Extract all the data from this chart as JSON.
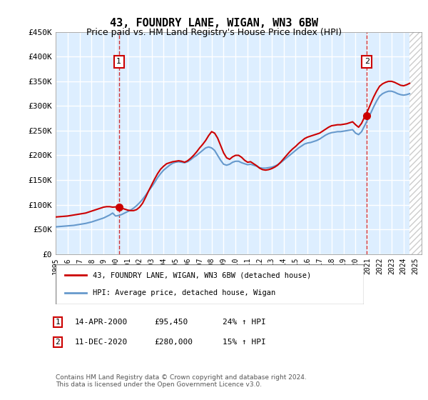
{
  "title": "43, FOUNDRY LANE, WIGAN, WN3 6BW",
  "subtitle": "Price paid vs. HM Land Registry's House Price Index (HPI)",
  "ylabel_ticks": [
    "£0",
    "£50K",
    "£100K",
    "£150K",
    "£200K",
    "£250K",
    "£300K",
    "£350K",
    "£400K",
    "£450K"
  ],
  "ylim": [
    0,
    450000
  ],
  "xlim_start": 1995.0,
  "xlim_end": 2025.5,
  "marker1_x": 2000.28,
  "marker1_y": 95450,
  "marker2_x": 2020.94,
  "marker2_y": 280000,
  "marker1_label": "1",
  "marker2_label": "2",
  "vline1_x": 2000.28,
  "vline2_x": 2020.94,
  "legend_line1": "43, FOUNDRY LANE, WIGAN, WN3 6BW (detached house)",
  "legend_line2": "HPI: Average price, detached house, Wigan",
  "annotation1": "1    14-APR-2000         £95,450         24% ↑ HPI",
  "annotation2": "2    11-DEC-2020         £280,000       15% ↑ HPI",
  "footer": "Contains HM Land Registry data © Crown copyright and database right 2024.\nThis data is licensed under the Open Government Licence v3.0.",
  "line_color_red": "#cc0000",
  "line_color_blue": "#6699cc",
  "background_color": "#ddeeff",
  "hatch_color": "#cccccc",
  "grid_color": "#ffffff",
  "title_fontsize": 11,
  "subtitle_fontsize": 9,
  "tick_fontsize": 8,
  "hpi_data_x": [
    1995.0,
    1995.25,
    1995.5,
    1995.75,
    1996.0,
    1996.25,
    1996.5,
    1996.75,
    1997.0,
    1997.25,
    1997.5,
    1997.75,
    1998.0,
    1998.25,
    1998.5,
    1998.75,
    1999.0,
    1999.25,
    1999.5,
    1999.75,
    2000.0,
    2000.25,
    2000.5,
    2000.75,
    2001.0,
    2001.25,
    2001.5,
    2001.75,
    2002.0,
    2002.25,
    2002.5,
    2002.75,
    2003.0,
    2003.25,
    2003.5,
    2003.75,
    2004.0,
    2004.25,
    2004.5,
    2004.75,
    2005.0,
    2005.25,
    2005.5,
    2005.75,
    2006.0,
    2006.25,
    2006.5,
    2006.75,
    2007.0,
    2007.25,
    2007.5,
    2007.75,
    2008.0,
    2008.25,
    2008.5,
    2008.75,
    2009.0,
    2009.25,
    2009.5,
    2009.75,
    2010.0,
    2010.25,
    2010.5,
    2010.75,
    2011.0,
    2011.25,
    2011.5,
    2011.75,
    2012.0,
    2012.25,
    2012.5,
    2012.75,
    2013.0,
    2013.25,
    2013.5,
    2013.75,
    2014.0,
    2014.25,
    2014.5,
    2014.75,
    2015.0,
    2015.25,
    2015.5,
    2015.75,
    2016.0,
    2016.25,
    2016.5,
    2016.75,
    2017.0,
    2017.25,
    2017.5,
    2017.75,
    2018.0,
    2018.25,
    2018.5,
    2018.75,
    2019.0,
    2019.25,
    2019.5,
    2019.75,
    2020.0,
    2020.25,
    2020.5,
    2020.75,
    2021.0,
    2021.25,
    2021.5,
    2021.75,
    2022.0,
    2022.25,
    2022.5,
    2022.75,
    2023.0,
    2023.25,
    2023.5,
    2023.75,
    2024.0,
    2024.25,
    2024.5
  ],
  "hpi_data_y": [
    55000,
    55500,
    56000,
    56500,
    57000,
    57500,
    58000,
    59000,
    60000,
    61000,
    62000,
    63500,
    65000,
    67000,
    69000,
    71000,
    73000,
    76000,
    79000,
    83000,
    77000,
    78000,
    80000,
    83000,
    86000,
    89000,
    93000,
    98000,
    104000,
    111000,
    119000,
    128000,
    136000,
    145000,
    155000,
    163000,
    170000,
    175000,
    180000,
    184000,
    186000,
    187000,
    186000,
    185000,
    187000,
    191000,
    196000,
    200000,
    205000,
    210000,
    215000,
    217000,
    215000,
    210000,
    200000,
    190000,
    182000,
    180000,
    182000,
    186000,
    188000,
    188000,
    185000,
    183000,
    181000,
    182000,
    180000,
    178000,
    175000,
    174000,
    174000,
    175000,
    176000,
    178000,
    181000,
    185000,
    190000,
    195000,
    200000,
    205000,
    210000,
    215000,
    219000,
    223000,
    225000,
    226000,
    228000,
    230000,
    233000,
    237000,
    241000,
    244000,
    246000,
    247000,
    248000,
    248000,
    249000,
    250000,
    251000,
    252000,
    245000,
    242000,
    248000,
    260000,
    272000,
    285000,
    298000,
    310000,
    320000,
    325000,
    328000,
    330000,
    330000,
    328000,
    325000,
    323000,
    322000,
    323000,
    325000
  ],
  "price_data_x": [
    1995.0,
    1995.25,
    1995.5,
    1995.75,
    1996.0,
    1996.25,
    1996.5,
    1996.75,
    1997.0,
    1997.25,
    1997.5,
    1997.75,
    1998.0,
    1998.25,
    1998.5,
    1998.75,
    1999.0,
    1999.25,
    1999.5,
    1999.75,
    2000.0,
    2000.25,
    2000.5,
    2000.75,
    2001.0,
    2001.25,
    2001.5,
    2001.75,
    2002.0,
    2002.25,
    2002.5,
    2002.75,
    2003.0,
    2003.25,
    2003.5,
    2003.75,
    2004.0,
    2004.25,
    2004.5,
    2004.75,
    2005.0,
    2005.25,
    2005.5,
    2005.75,
    2006.0,
    2006.25,
    2006.5,
    2006.75,
    2007.0,
    2007.25,
    2007.5,
    2007.75,
    2008.0,
    2008.25,
    2008.5,
    2008.75,
    2009.0,
    2009.25,
    2009.5,
    2009.75,
    2010.0,
    2010.25,
    2010.5,
    2010.75,
    2011.0,
    2011.25,
    2011.5,
    2011.75,
    2012.0,
    2012.25,
    2012.5,
    2012.75,
    2013.0,
    2013.25,
    2013.5,
    2013.75,
    2014.0,
    2014.25,
    2014.5,
    2014.75,
    2015.0,
    2015.25,
    2015.5,
    2015.75,
    2016.0,
    2016.25,
    2016.5,
    2016.75,
    2017.0,
    2017.25,
    2017.5,
    2017.75,
    2018.0,
    2018.25,
    2018.5,
    2018.75,
    2019.0,
    2019.25,
    2019.5,
    2019.75,
    2020.0,
    2020.25,
    2020.5,
    2020.75,
    2021.0,
    2021.25,
    2021.5,
    2021.75,
    2022.0,
    2022.25,
    2022.5,
    2022.75,
    2023.0,
    2023.25,
    2023.5,
    2023.75,
    2024.0,
    2024.25,
    2024.5
  ],
  "price_data_y": [
    75000,
    75500,
    76000,
    76500,
    77000,
    78000,
    79000,
    80000,
    81000,
    82000,
    83000,
    85000,
    87000,
    89000,
    91000,
    93000,
    95000,
    96000,
    96000,
    95000,
    95450,
    95000,
    93000,
    91000,
    89000,
    88000,
    88000,
    90000,
    95000,
    103000,
    115000,
    128000,
    140000,
    152000,
    163000,
    172000,
    178000,
    183000,
    185000,
    187000,
    188000,
    189000,
    188000,
    186000,
    189000,
    194000,
    200000,
    207000,
    215000,
    222000,
    230000,
    240000,
    248000,
    245000,
    235000,
    220000,
    205000,
    195000,
    192000,
    197000,
    200000,
    200000,
    196000,
    190000,
    186000,
    187000,
    183000,
    179000,
    174000,
    171000,
    170000,
    171000,
    173000,
    176000,
    180000,
    186000,
    193000,
    200000,
    207000,
    213000,
    218000,
    224000,
    229000,
    234000,
    237000,
    239000,
    241000,
    243000,
    245000,
    249000,
    253000,
    257000,
    260000,
    261000,
    262000,
    262000,
    263000,
    264000,
    266000,
    268000,
    262000,
    257000,
    265000,
    278000,
    290000,
    304000,
    318000,
    330000,
    340000,
    345000,
    348000,
    350000,
    350000,
    348000,
    345000,
    342000,
    341000,
    343000,
    346000
  ]
}
